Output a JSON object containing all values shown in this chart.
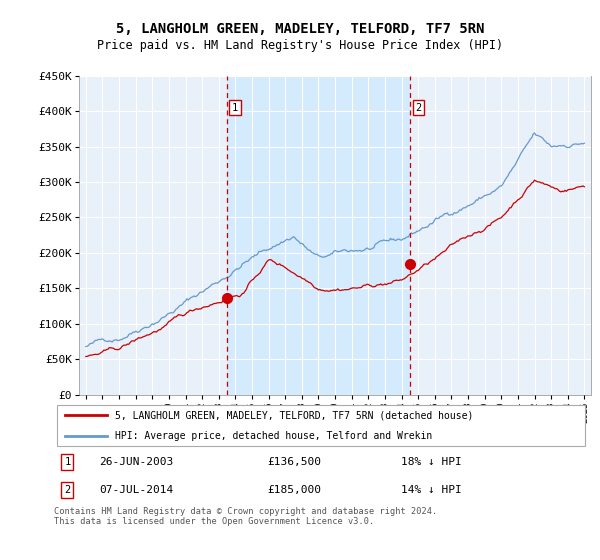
{
  "title": "5, LANGHOLM GREEN, MADELEY, TELFORD, TF7 5RN",
  "subtitle": "Price paid vs. HM Land Registry's House Price Index (HPI)",
  "legend_line1": "5, LANGHOLM GREEN, MADELEY, TELFORD, TF7 5RN (detached house)",
  "legend_line2": "HPI: Average price, detached house, Telford and Wrekin",
  "sale1_date": "26-JUN-2003",
  "sale1_price": "£136,500",
  "sale1_hpi": "18% ↓ HPI",
  "sale2_date": "07-JUL-2014",
  "sale2_price": "£185,000",
  "sale2_hpi": "14% ↓ HPI",
  "footnote": "Contains HM Land Registry data © Crown copyright and database right 2024.\nThis data is licensed under the Open Government Licence v3.0.",
  "red_color": "#cc0000",
  "blue_color": "#6699cc",
  "highlight_color": "#cce0ff",
  "background_color": "#ddeeff",
  "chart_bg": "#e8f0fa",
  "ylim": [
    0,
    450000
  ],
  "yticks": [
    0,
    50000,
    100000,
    150000,
    200000,
    250000,
    300000,
    350000,
    400000,
    450000
  ],
  "sale1_x_year": 2003.49,
  "sale1_y": 136500,
  "sale2_x_year": 2014.52,
  "sale2_y": 185000,
  "xmin": 1994.6,
  "xmax": 2025.4
}
